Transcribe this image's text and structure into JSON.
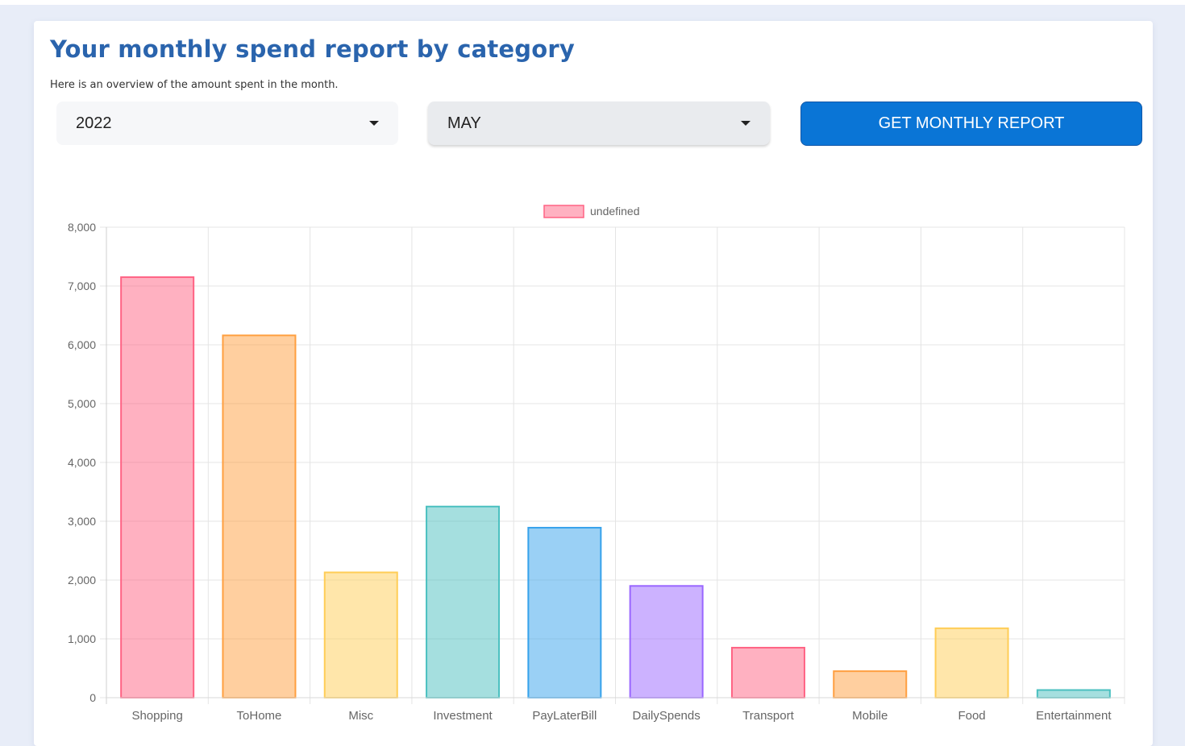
{
  "header": {
    "title": "Your monthly spend report by category",
    "subtitle": "Here is an overview of the amount spent in the month."
  },
  "filters": {
    "year_value": "2022",
    "month_value": "MAY",
    "caret_icon": "caret-down-icon"
  },
  "actions": {
    "report_button_label": "GET MONTHLY REPORT",
    "report_button_color": "#0a75d6"
  },
  "chart_data": {
    "type": "bar",
    "legend": {
      "label": "undefined",
      "placement": "top-center"
    },
    "categories": [
      "Shopping",
      "ToHome",
      "Misc",
      "Investment",
      "PayLaterBill",
      "DailySpends",
      "Transport",
      "Mobile",
      "Food",
      "Entertainment"
    ],
    "values": [
      7150,
      6160,
      2130,
      3250,
      2890,
      1900,
      850,
      450,
      1180,
      130
    ],
    "ylim": [
      0,
      8000
    ],
    "yticks": [
      0,
      1000,
      2000,
      3000,
      4000,
      5000,
      6000,
      7000,
      8000
    ],
    "ytick_labels": [
      "0",
      "1,000",
      "2,000",
      "3,000",
      "4,000",
      "5,000",
      "6,000",
      "7,000",
      "8,000"
    ],
    "grid": true,
    "colors": [
      {
        "fill": "rgba(255,99,132,0.5)",
        "stroke": "#ff6384"
      },
      {
        "fill": "rgba(255,159,64,0.5)",
        "stroke": "#ff9f40"
      },
      {
        "fill": "rgba(255,205,86,0.5)",
        "stroke": "#ffcd56"
      },
      {
        "fill": "rgba(75,192,192,0.5)",
        "stroke": "#4bc0c0"
      },
      {
        "fill": "rgba(54,162,235,0.5)",
        "stroke": "#36a2eb"
      },
      {
        "fill": "rgba(153,102,255,0.5)",
        "stroke": "#9966ff"
      }
    ]
  }
}
